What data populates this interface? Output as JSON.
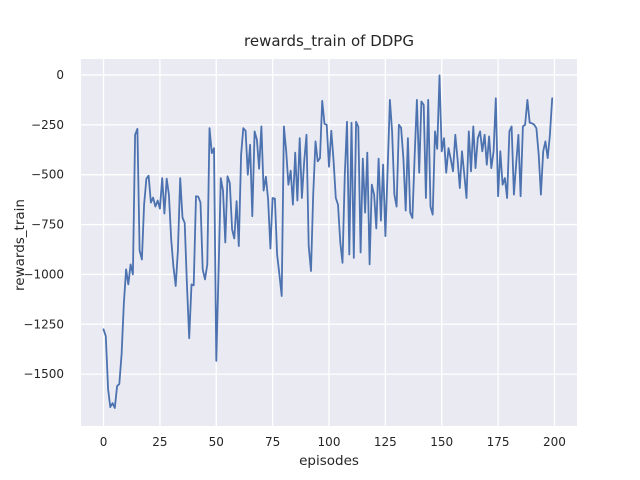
{
  "chart_data": {
    "type": "line",
    "title": "rewards_train of DDPG",
    "xlabel": "episodes",
    "ylabel": "rewards_train",
    "xlim": [
      -10,
      210
    ],
    "ylim": [
      -1760,
      80
    ],
    "xticks": [
      0,
      25,
      50,
      75,
      100,
      125,
      150,
      175,
      200
    ],
    "yticks": [
      0,
      -250,
      -500,
      -750,
      -1000,
      -1250,
      -1500
    ],
    "grid": true,
    "legend": "none",
    "series": [
      {
        "name": "rewards_train",
        "x_start": 0,
        "x_step": 1,
        "values": [
          -1275,
          -1310,
          -1575,
          -1665,
          -1645,
          -1670,
          -1560,
          -1550,
          -1400,
          -1150,
          -975,
          -1050,
          -950,
          -1000,
          -300,
          -270,
          -880,
          -925,
          -650,
          -520,
          -505,
          -640,
          -615,
          -660,
          -630,
          -670,
          -517,
          -695,
          -520,
          -600,
          -825,
          -960,
          -1058,
          -880,
          -517,
          -715,
          -742,
          -1058,
          -1320,
          -1050,
          -1055,
          -608,
          -610,
          -640,
          -975,
          -1025,
          -950,
          -267,
          -392,
          -367,
          -1433,
          -1000,
          -517,
          -580,
          -840,
          -508,
          -542,
          -775,
          -820,
          -633,
          -858,
          -400,
          -267,
          -280,
          -500,
          -350,
          -708,
          -283,
          -325,
          -470,
          -258,
          -580,
          -510,
          -625,
          -870,
          -617,
          -620,
          -900,
          -1000,
          -1108,
          -258,
          -383,
          -550,
          -480,
          -650,
          -390,
          -630,
          -317,
          -617,
          -433,
          -300,
          -858,
          -983,
          -600,
          -333,
          -433,
          -417,
          -130,
          -245,
          -250,
          -460,
          -280,
          -425,
          -617,
          -650,
          -840,
          -942,
          -500,
          -235,
          -900,
          -240,
          -917,
          -235,
          -260,
          -890,
          -420,
          -690,
          -390,
          -950,
          -550,
          -600,
          -770,
          -420,
          -730,
          -450,
          -808,
          -480,
          -125,
          -283,
          -600,
          -660,
          -250,
          -265,
          -420,
          -680,
          -317,
          -690,
          -717,
          -400,
          -125,
          -490,
          -133,
          -150,
          -617,
          -125,
          -660,
          -700,
          -283,
          -370,
          -2,
          -383,
          -317,
          -490,
          -367,
          -420,
          -483,
          -300,
          -420,
          -567,
          -383,
          -500,
          -617,
          -283,
          -483,
          -258,
          -467,
          -317,
          -283,
          -383,
          -300,
          -450,
          -308,
          -467,
          -383,
          -117,
          -608,
          -383,
          -550,
          -517,
          -617,
          -283,
          -258,
          -600,
          -450,
          -300,
          -608,
          -258,
          -250,
          -125,
          -240,
          -242,
          -250,
          -267,
          -400,
          -600,
          -383,
          -333,
          -417,
          -300,
          -117
        ]
      }
    ],
    "colors": {
      "line": "#4C72B0",
      "axes_bg": "#EAEAF2",
      "grid": "#FFFFFF",
      "figure_bg": "#FFFFFF",
      "text": "#262626"
    }
  }
}
